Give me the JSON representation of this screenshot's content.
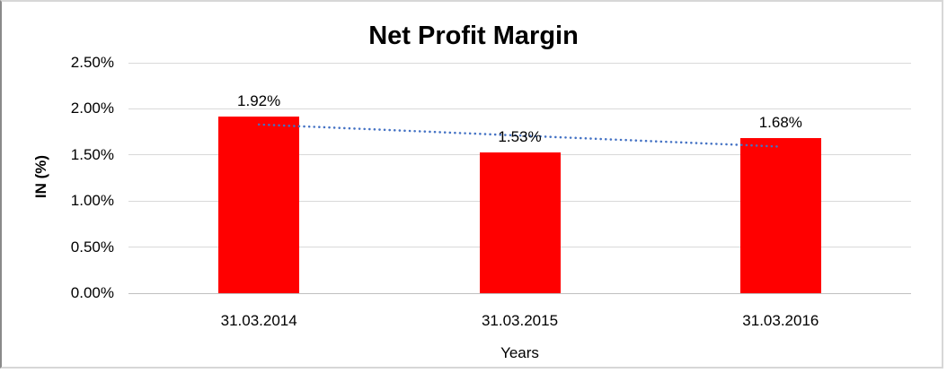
{
  "chart_data": {
    "type": "bar",
    "title": "Net Profit Margin",
    "categories": [
      "31.03.2014",
      "31.03.2015",
      "31.03.2016"
    ],
    "series": [
      {
        "name": "Net Profit Margin",
        "values": [
          1.92,
          1.53,
          1.68
        ]
      }
    ],
    "data_labels": [
      "1.92%",
      "1.53%",
      "1.68%"
    ],
    "xlabel": "Years",
    "ylabel": "IN (%)",
    "ylim": [
      0,
      2.5
    ],
    "yticks": [
      0,
      0.5,
      1,
      1.5,
      2,
      2.5
    ],
    "ytick_labels": [
      "0.00%",
      "0.50%",
      "1.00%",
      "1.50%",
      "2.00%",
      "2.50%"
    ],
    "grid": true,
    "legend_position": "none",
    "trendline": {
      "type": "linear",
      "style": "dotted",
      "values": [
        1.83,
        1.71,
        1.59
      ]
    },
    "colors": {
      "bar": "#FF0000",
      "gridline": "#D9D9D9",
      "axis_line": "#C0C0C0",
      "trendline": "#4472C4",
      "text": "#000000"
    }
  }
}
